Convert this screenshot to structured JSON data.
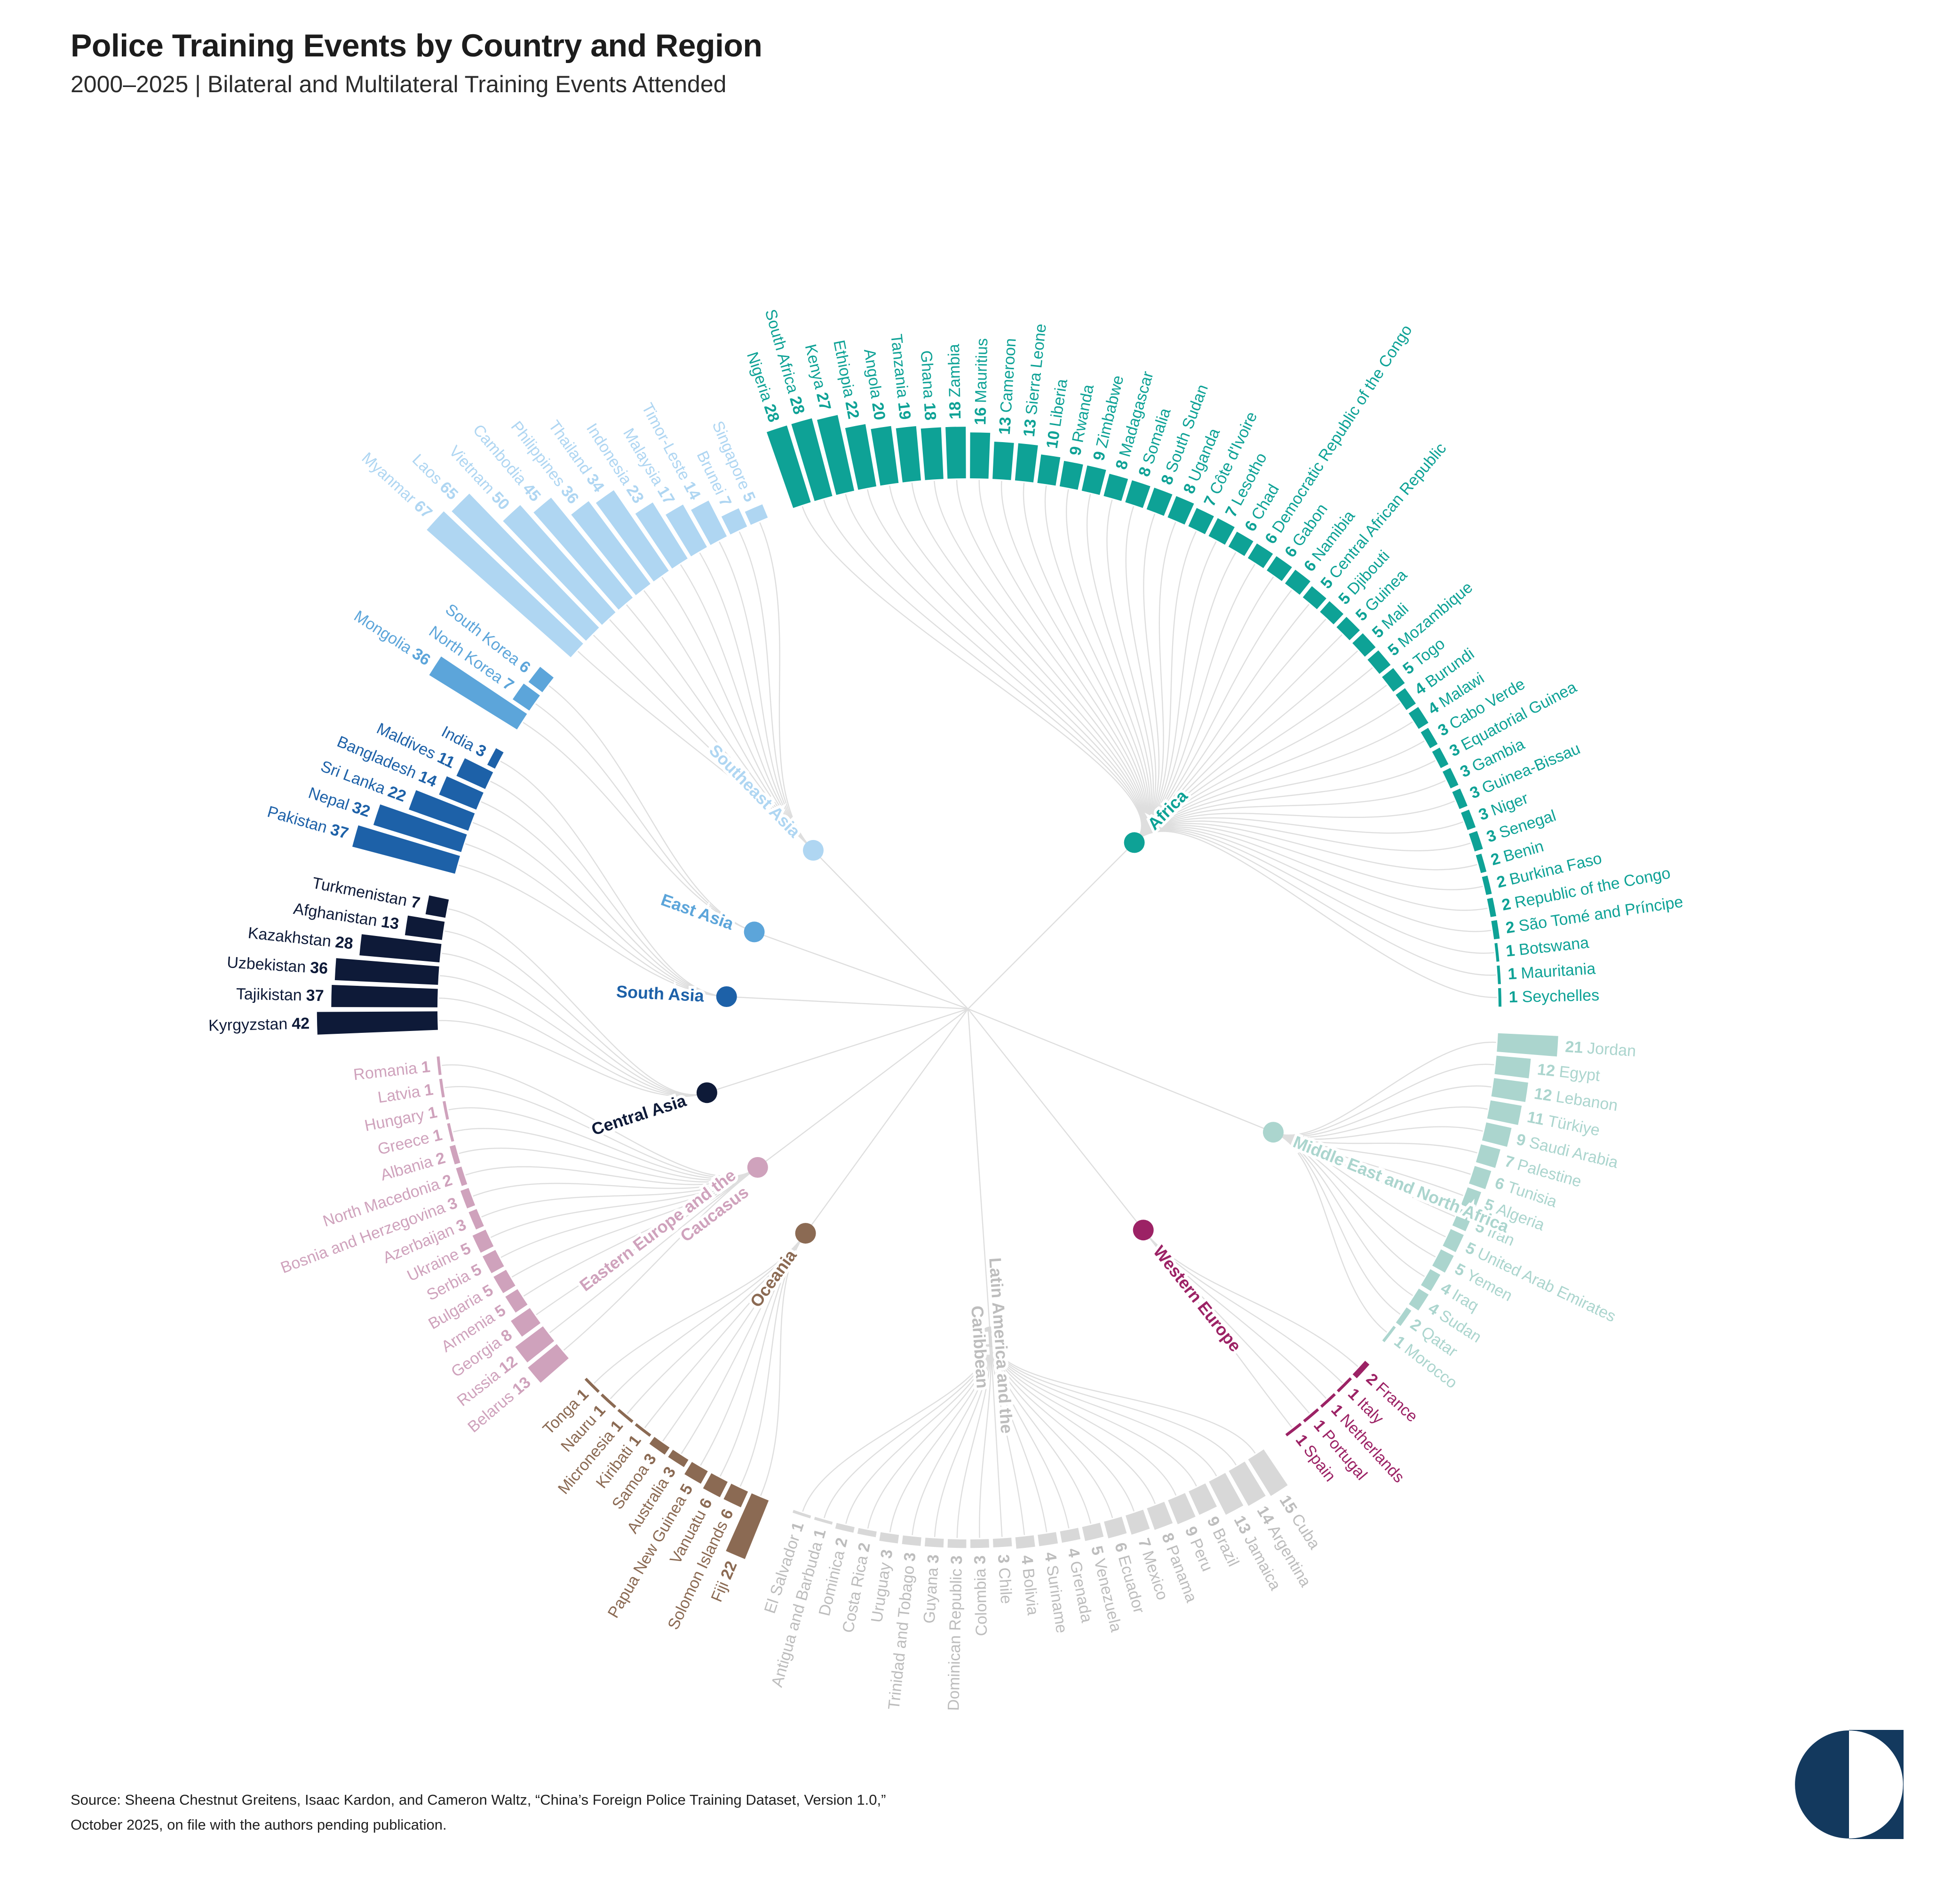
{
  "header": {
    "title": "Police Training Events by Country and Region",
    "subtitle": "2000–2025 | Bilateral and Multilateral Training Events Attended"
  },
  "source": {
    "line1": "Source: Sheena Chestnut Greitens, Isaac Kardon, and Cameron Waltz, “China’s Foreign Police Training Dataset, Version 1.0,”",
    "line2": "October 2025, on file with the authors pending publication."
  },
  "logo": {
    "name": "carnegie-logo",
    "color": "#13395E"
  },
  "colors": {
    "edges": "#dedede",
    "title": "#1c1c1c",
    "background": "#ffffff"
  },
  "chart_data": {
    "type": "bar",
    "subtype": "radial-bar-with-dendrogram",
    "title": "Police Training Events by Country and Region",
    "units": "training events attended, 2000-2025",
    "legend_position": "none",
    "grid": false,
    "regions": [
      {
        "name": "Africa",
        "label_lines": [
          "Africa"
        ],
        "color": "#0EA296",
        "countries": [
          [
            "Nigeria",
            28
          ],
          [
            "South Africa",
            28
          ],
          [
            "Kenya",
            27
          ],
          [
            "Ethiopia",
            22
          ],
          [
            "Angola",
            20
          ],
          [
            "Tanzania",
            19
          ],
          [
            "Ghana",
            18
          ],
          [
            "Zambia",
            18
          ],
          [
            "Mauritius",
            16
          ],
          [
            "Cameroon",
            13
          ],
          [
            "Sierra Leone",
            13
          ],
          [
            "Liberia",
            10
          ],
          [
            "Rwanda",
            9
          ],
          [
            "Zimbabwe",
            9
          ],
          [
            "Madagascar",
            8
          ],
          [
            "Somalia",
            8
          ],
          [
            "South Sudan",
            8
          ],
          [
            "Uganda",
            8
          ],
          [
            "Côte d'Ivoire",
            7
          ],
          [
            "Lesotho",
            7
          ],
          [
            "Chad",
            6
          ],
          [
            "Democratic Republic of the Congo",
            6
          ],
          [
            "Gabon",
            6
          ],
          [
            "Namibia",
            6
          ],
          [
            "Central African Republic",
            5
          ],
          [
            "Djibouti",
            5
          ],
          [
            "Guinea",
            5
          ],
          [
            "Mali",
            5
          ],
          [
            "Mozambique",
            5
          ],
          [
            "Togo",
            5
          ],
          [
            "Burundi",
            4
          ],
          [
            "Malawi",
            4
          ],
          [
            "Cabo Verde",
            3
          ],
          [
            "Equatorial Guinea",
            3
          ],
          [
            "Gambia",
            3
          ],
          [
            "Guinea-Bissau",
            3
          ],
          [
            "Niger",
            3
          ],
          [
            "Senegal",
            3
          ],
          [
            "Benin",
            2
          ],
          [
            "Burkina Faso",
            2
          ],
          [
            "Republic of the Congo",
            2
          ],
          [
            "São Tomé and Príncipe",
            2
          ],
          [
            "Botswana",
            1
          ],
          [
            "Mauritania",
            1
          ],
          [
            "Seychelles",
            1
          ]
        ]
      },
      {
        "name": "Middle East and North Africa",
        "label_lines": [
          "Middle East and North Africa"
        ],
        "color": "#ABD5CE",
        "countries": [
          [
            "Jordan",
            21
          ],
          [
            "Egypt",
            12
          ],
          [
            "Lebanon",
            12
          ],
          [
            "Türkiye",
            11
          ],
          [
            "Saudi Arabia",
            9
          ],
          [
            "Palestine",
            7
          ],
          [
            "Tunisia",
            6
          ],
          [
            "Algeria",
            5
          ],
          [
            "Iran",
            5
          ],
          [
            "United Arab Emirates",
            5
          ],
          [
            "Yemen",
            5
          ],
          [
            "Iraq",
            4
          ],
          [
            "Sudan",
            4
          ],
          [
            "Qatar",
            2
          ],
          [
            "Morocco",
            1
          ]
        ]
      },
      {
        "name": "Western Europe",
        "label_lines": [
          "Western Europe"
        ],
        "color": "#9C2265",
        "countries": [
          [
            "France",
            2
          ],
          [
            "Italy",
            1
          ],
          [
            "Netherlands",
            1
          ],
          [
            "Portugal",
            1
          ],
          [
            "Spain",
            1
          ]
        ]
      },
      {
        "name": "Latin America and the Caribbean",
        "label_lines": [
          "Latin America and the",
          "Caribbean"
        ],
        "color": "#D8D8D8",
        "text_color": "#BDBDBD",
        "countries": [
          [
            "Cuba",
            15
          ],
          [
            "Argentina",
            14
          ],
          [
            "Jamaica",
            13
          ],
          [
            "Brazil",
            9
          ],
          [
            "Peru",
            9
          ],
          [
            "Panama",
            8
          ],
          [
            "Mexico",
            7
          ],
          [
            "Ecuador",
            6
          ],
          [
            "Venezuela",
            5
          ],
          [
            "Grenada",
            4
          ],
          [
            "Suriname",
            4
          ],
          [
            "Bolivia",
            4
          ],
          [
            "Chile",
            3
          ],
          [
            "Colombia",
            3
          ],
          [
            "Dominican Republic",
            3
          ],
          [
            "Guyana",
            3
          ],
          [
            "Trinidad and Tobago",
            3
          ],
          [
            "Uruguay",
            3
          ],
          [
            "Costa Rica",
            2
          ],
          [
            "Dominica",
            2
          ],
          [
            "Antigua and Barbuda",
            1
          ],
          [
            "El Salvador",
            1
          ]
        ]
      },
      {
        "name": "Oceania",
        "label_lines": [
          "Oceania"
        ],
        "color": "#8B6A53",
        "countries": [
          [
            "Fiji",
            22
          ],
          [
            "Solomon Islands",
            6
          ],
          [
            "Vanuatu",
            6
          ],
          [
            "Papua New Guinea",
            5
          ],
          [
            "Australia",
            3
          ],
          [
            "Samoa",
            3
          ],
          [
            "Kiribati",
            1
          ],
          [
            "Micronesia",
            1
          ],
          [
            "Nauru",
            1
          ],
          [
            "Tonga",
            1
          ]
        ]
      },
      {
        "name": "Eastern Europe and the Caucasus",
        "label_lines": [
          "Eastern Europe and the",
          "Caucasus"
        ],
        "color": "#CFA2BC",
        "countries": [
          [
            "Belarus",
            13
          ],
          [
            "Russia",
            12
          ],
          [
            "Georgia",
            8
          ],
          [
            "Armenia",
            5
          ],
          [
            "Bulgaria",
            5
          ],
          [
            "Serbia",
            5
          ],
          [
            "Ukraine",
            5
          ],
          [
            "Azerbaijan",
            3
          ],
          [
            "Bosnia and Herzegovina",
            3
          ],
          [
            "North Macedonia",
            2
          ],
          [
            "Albania",
            2
          ],
          [
            "Greece",
            1
          ],
          [
            "Hungary",
            1
          ],
          [
            "Latvia",
            1
          ],
          [
            "Romania",
            1
          ]
        ]
      },
      {
        "name": "Central Asia",
        "label_lines": [
          "Central Asia"
        ],
        "color": "#0E1A38",
        "countries": [
          [
            "Kyrgyzstan",
            42
          ],
          [
            "Tajikistan",
            37
          ],
          [
            "Uzbekistan",
            36
          ],
          [
            "Kazakhstan",
            28
          ],
          [
            "Afghanistan",
            13
          ],
          [
            "Turkmenistan",
            7
          ]
        ]
      },
      {
        "name": "South Asia",
        "label_lines": [
          "South Asia"
        ],
        "color": "#1D61A8",
        "countries": [
          [
            "Pakistan",
            37
          ],
          [
            "Nepal",
            32
          ],
          [
            "Sri Lanka",
            22
          ],
          [
            "Bangladesh",
            14
          ],
          [
            "Maldives",
            11
          ],
          [
            "India",
            3
          ]
        ]
      },
      {
        "name": "East Asia",
        "label_lines": [
          "East Asia"
        ],
        "color": "#5CA5DA",
        "countries": [
          [
            "Mongolia",
            36
          ],
          [
            "North Korea",
            7
          ],
          [
            "South Korea",
            6
          ]
        ]
      },
      {
        "name": "Southeast Asia",
        "label_lines": [
          "Southeast Asia"
        ],
        "color": "#AFD6F2",
        "countries": [
          [
            "Myanmar",
            67
          ],
          [
            "Laos",
            65
          ],
          [
            "Vietnam",
            50
          ],
          [
            "Cambodia",
            45
          ],
          [
            "Philippines",
            36
          ],
          [
            "Thailand",
            34
          ],
          [
            "Indonesia",
            23
          ],
          [
            "Malaysia",
            17
          ],
          [
            "Timor-Leste",
            14
          ],
          [
            "Brunei",
            7
          ],
          [
            "Singapore",
            5
          ]
        ]
      }
    ]
  }
}
